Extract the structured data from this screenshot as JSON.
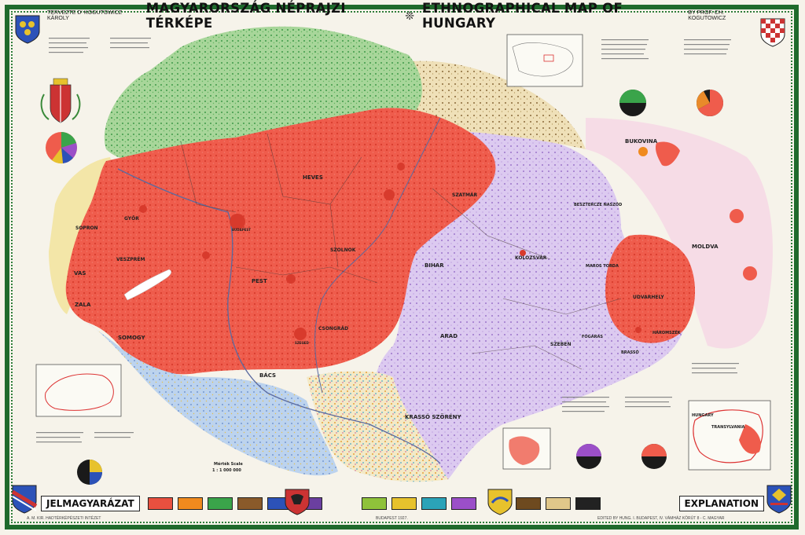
{
  "header": {
    "author_left": "TERVEZTE Dʳ KOGUTOWICZ KÁROLY",
    "title_hu": "MAGYARORSZÁG NÉPRAJZI TÉRKÉPE",
    "separator": "❊",
    "title_en": "ETHNOGRAPHICAL MAP OF HUNGARY",
    "author_right": "BY PROF. CH. KOGUTOWICZ"
  },
  "map_labels": {
    "bukovina": "BUKOVINA",
    "moldva": "MOLDVA",
    "budapest": "BUDAPEST",
    "arad": "ARAD",
    "kolozsvar": "KOLOZSVÁR",
    "szeged": "SZEGED",
    "vas": "VAS",
    "zala": "ZALA",
    "somogy": "SOMOGY",
    "veszprem": "VESZPRÉM",
    "sopron": "SOPRON",
    "gyor": "GYŐR",
    "pest": "PEST",
    "bacs": "BÁCS",
    "heves": "HEVES",
    "szolnok": "SZOLNOK",
    "csongrad": "CSONGRÁD",
    "bihar": "BIHAR",
    "szatmar": "SZATMÁR",
    "kraso": "KRASSÓ SZÖRÉNY",
    "udvarhely": "UDVARHELY",
    "haromszek": "HÁROMSZÉK",
    "maros": "MAROS TORDA",
    "szeben": "SZEBEN",
    "fogaras": "FOGARAS",
    "brasso": "BRASSÓ",
    "besztercze": "BESZTERCZE NASZÓD"
  },
  "inset_labels": {
    "hungary": "HUNGARY",
    "transylvania": "TRANSYLVANIA"
  },
  "scale": {
    "label": "Mérték  Scale",
    "value": "1 : 1 000 000"
  },
  "legend": {
    "left_word": "JELMAGYARÁZAT",
    "right_word": "EXPLANATION",
    "swatches": [
      {
        "color": "#e8503f"
      },
      {
        "color": "#f08a1e"
      },
      {
        "color": "#3aa44a"
      },
      {
        "color": "#8a5a2a"
      },
      {
        "color": "#2c52b8"
      },
      {
        "color": "#6b3fa0"
      },
      {
        "color": "#8fc23a"
      },
      {
        "color": "#e7c22d"
      },
      {
        "color": "#2ba3b8"
      },
      {
        "color": "#9b4fc8"
      },
      {
        "color": "#6e4a1f"
      },
      {
        "color": "#e0c78a"
      },
      {
        "color": "#222222"
      }
    ]
  },
  "footer": {
    "left": "A. M. KIR. HADTÉRKÉPÉSZETI INTÉZET",
    "center": "BUDAPEST 1927.",
    "right": "EDITED BY HUNG. I. BUDAPEST, IV. VÁMHÁZ KÖRÚT 8 - C. MAGYAR"
  },
  "colors": {
    "magyar": "#ee5a4c",
    "slovak": "#8dc47a",
    "romanian": "#cdb4e6",
    "german": "#f1e3a1",
    "serbian": "#9fc1e6",
    "ruthenian": "#d8c49a",
    "border_green": "#1f6a2c"
  },
  "icons": [
    "coat-of-arms-icon",
    "shield-icon",
    "pie-chart-icon"
  ]
}
